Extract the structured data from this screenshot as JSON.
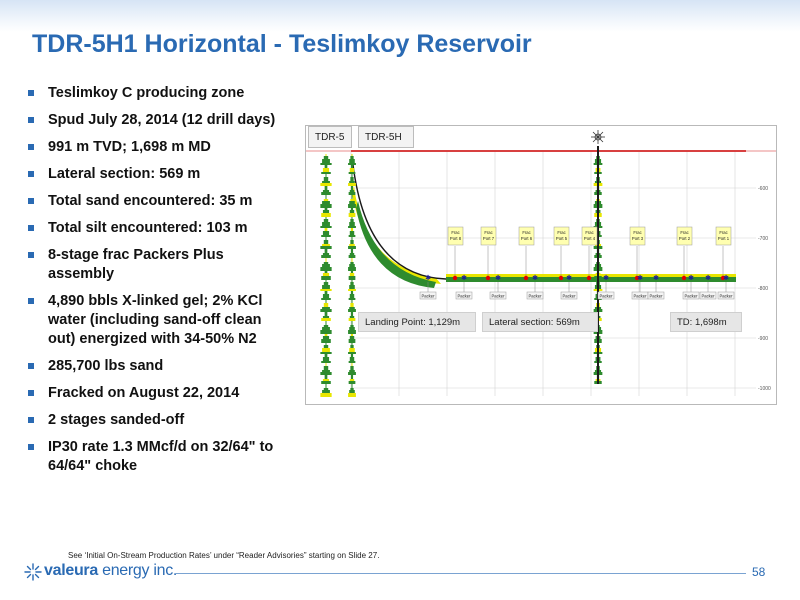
{
  "slide": {
    "title": "TDR-5H1 Horizontal - Teslimkoy Reservoir",
    "bullets": [
      "Teslimkoy C producing zone",
      "Spud July 28, 2014  (12 drill days)",
      "991  m TVD; 1,698 m MD",
      "Lateral section: 569 m",
      "Total sand encountered: 35 m",
      "Total silt encountered:  103 m",
      "8-stage frac Packers Plus assembly",
      "4,890 bbls X-linked gel;  2% KCl water (including sand-off clean out) energized with 34-50% N2",
      "285,700 lbs sand",
      "Fracked on August  22, 2014",
      "2 stages sanded-off",
      "IP30 rate 1.3 MMcf/d on 32/64\" to 64/64\" choke"
    ],
    "footnote": "See ‘Initial On-Stream Production Rates’ under “Reader Advisories” starting on Slide 27.",
    "page_number": "58"
  },
  "logo": {
    "brand": "valeura",
    "suffix": " energy inc.",
    "icon": "star-burst-icon"
  },
  "figure": {
    "tabs": [
      "TDR-5",
      "TDR-5H"
    ],
    "frac_port_labels": [
      "Frac Port 8",
      "Frac Port 7",
      "Frac Port 6",
      "Frac Port 5",
      "Frac Port 4",
      "Frac Port 3",
      "Frac Port 2",
      "Frac Port 1"
    ],
    "packer_label": "Packer",
    "packer_count": 11,
    "info_boxes": {
      "landing_point": "Landing Point: 1,129m",
      "lateral_section": "Lateral section: 569m",
      "td": "TD: 1,698m"
    },
    "depth_axis_labels": [
      "-600",
      "-700",
      "-800",
      "-900",
      "-1000",
      "-1100"
    ],
    "colors": {
      "title": "#2a6ab3",
      "bullet": "#2a6ab3",
      "sand": "#e8e600",
      "silt": "#2e8b2e",
      "top_line": "#cc0000",
      "frac_marker": "#e00000",
      "packer_marker": "#1a1a9a",
      "label_box": "#ffffb0"
    }
  }
}
